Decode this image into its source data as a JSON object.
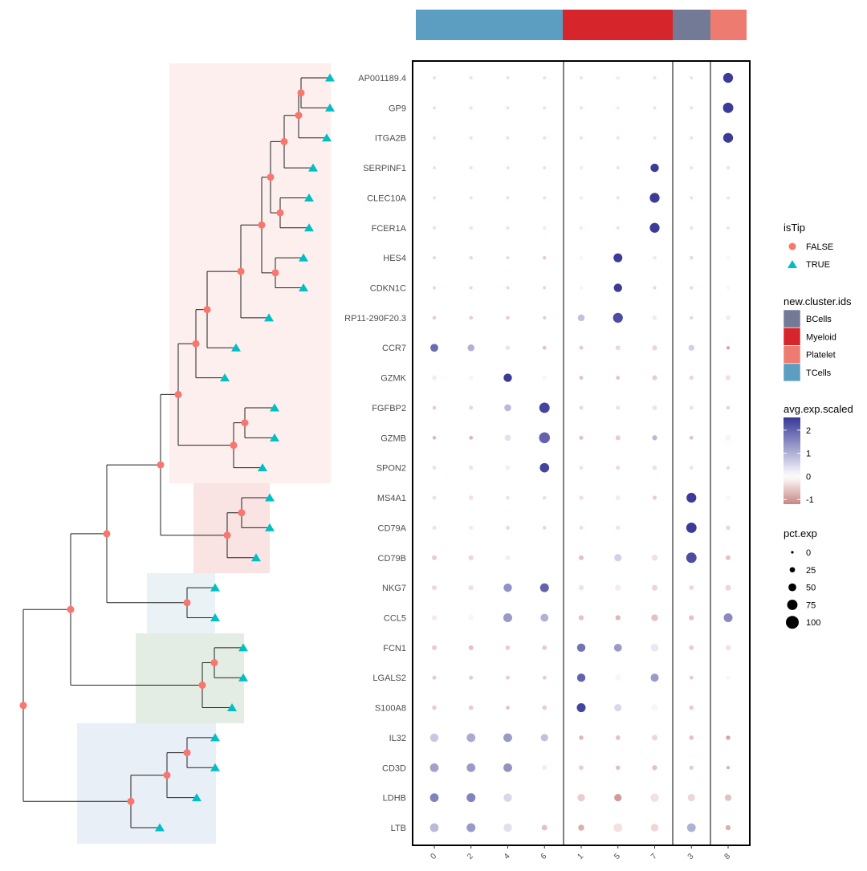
{
  "chart_data": {
    "type": "dotplot",
    "clusters": [
      "0",
      "2",
      "4",
      "6",
      "1",
      "5",
      "7",
      "3",
      "8"
    ],
    "genes": [
      "AP001189.4",
      "GP9",
      "ITGA2B",
      "SERPINF1",
      "CLEC10A",
      "FCER1A",
      "HES4",
      "CDKN1C",
      "RP11-290F20.3",
      "CCR7",
      "GZMK",
      "FGFBP2",
      "GZMB",
      "SPON2",
      "MS4A1",
      "CD79A",
      "CD79B",
      "NKG7",
      "CCL5",
      "FCN1",
      "LGALS2",
      "S100A8",
      "IL32",
      "CD3D",
      "LDHB",
      "LTB"
    ],
    "cluster_groups": [
      {
        "name": "TCells",
        "clusters": [
          "0",
          "2",
          "4",
          "6"
        ],
        "color": "#5b9ec2"
      },
      {
        "name": "Myeloid",
        "clusters": [
          "1",
          "5",
          "7"
        ],
        "color": "#d6262b"
      },
      {
        "name": "BCells",
        "clusters": [
          "3"
        ],
        "color": "#737a96"
      },
      {
        "name": "Platelet",
        "clusters": [
          "8"
        ],
        "color": "#ee7b6f"
      }
    ],
    "pct_exp": [
      [
        4,
        4,
        4,
        4,
        4,
        8,
        4,
        4,
        70
      ],
      [
        4,
        4,
        4,
        4,
        4,
        8,
        4,
        4,
        75
      ],
      [
        5,
        4,
        4,
        4,
        5,
        4,
        4,
        4,
        70
      ],
      [
        4,
        4,
        4,
        4,
        6,
        4,
        55,
        4,
        4
      ],
      [
        5,
        5,
        4,
        4,
        8,
        4,
        70,
        4,
        4
      ],
      [
        8,
        7,
        7,
        8,
        7,
        6,
        70,
        6,
        4
      ],
      [
        5,
        7,
        4,
        7,
        7,
        60,
        10,
        8,
        10
      ],
      [
        5,
        5,
        4,
        6,
        6,
        55,
        5,
        6,
        7
      ],
      [
        8,
        8,
        7,
        5,
        40,
        70,
        18,
        8,
        18
      ],
      [
        50,
        40,
        15,
        10,
        12,
        18,
        22,
        30,
        5
      ],
      [
        18,
        18,
        55,
        16,
        10,
        9,
        20,
        12,
        22
      ],
      [
        8,
        12,
        40,
        75,
        9,
        12,
        18,
        10,
        5
      ],
      [
        8,
        10,
        32,
        80,
        12,
        20,
        22,
        9,
        32
      ],
      [
        12,
        12,
        18,
        65,
        10,
        10,
        18,
        9,
        5
      ],
      [
        12,
        15,
        10,
        12,
        14,
        18,
        12,
        70,
        12
      ],
      [
        12,
        15,
        10,
        9,
        12,
        12,
        0,
        75,
        16
      ],
      [
        20,
        22,
        18,
        20,
        20,
        45,
        32,
        75,
        20
      ],
      [
        18,
        22,
        55,
        60,
        22,
        30,
        30,
        18,
        28
      ],
      [
        22,
        28,
        60,
        50,
        22,
        22,
        40,
        22,
        60
      ],
      [
        20,
        20,
        16,
        18,
        55,
        50,
        50,
        18,
        22
      ],
      [
        12,
        12,
        10,
        10,
        55,
        32,
        52,
        10,
        12
      ],
      [
        16,
        18,
        10,
        16,
        60,
        45,
        38,
        16,
        26
      ],
      [
        55,
        58,
        58,
        45,
        16,
        18,
        28,
        16,
        15
      ],
      [
        58,
        58,
        58,
        18,
        16,
        16,
        22,
        14,
        5
      ],
      [
        58,
        60,
        55,
        45,
        45,
        45,
        55,
        45,
        38
      ],
      [
        58,
        60,
        55,
        28,
        32,
        58,
        48,
        58,
        22
      ]
    ],
    "avg_exp_scaled": [
      [
        -0.3,
        -0.3,
        -0.3,
        -0.3,
        -0.3,
        -0.2,
        -0.3,
        -0.3,
        2.5
      ],
      [
        -0.3,
        -0.3,
        -0.3,
        -0.3,
        -0.3,
        -0.2,
        -0.3,
        -0.3,
        2.5
      ],
      [
        -0.3,
        -0.3,
        -0.3,
        -0.3,
        -0.3,
        -0.3,
        -0.3,
        -0.3,
        2.5
      ],
      [
        -0.3,
        -0.3,
        -0.3,
        -0.3,
        -0.2,
        -0.3,
        2.5,
        -0.3,
        -0.3
      ],
      [
        -0.3,
        -0.3,
        -0.3,
        -0.3,
        0.2,
        -0.3,
        2.5,
        -0.3,
        -0.3
      ],
      [
        -0.3,
        -0.3,
        -0.3,
        -0.2,
        -0.2,
        -0.3,
        2.5,
        -0.3,
        -0.3
      ],
      [
        -0.4,
        -0.4,
        -0.4,
        -0.5,
        0.1,
        2.5,
        -0.2,
        -0.4,
        -0.1
      ],
      [
        -0.4,
        -0.4,
        -0.4,
        -0.4,
        -0.1,
        2.5,
        -0.4,
        -0.4,
        0.1
      ],
      [
        -0.5,
        -0.5,
        -0.5,
        -0.5,
        0.8,
        2.3,
        -0.2,
        -0.4,
        -0.2
      ],
      [
        1.9,
        1.0,
        -0.3,
        -0.6,
        -0.5,
        -0.4,
        -0.4,
        0.6,
        -0.9
      ],
      [
        -0.2,
        0.1,
        2.5,
        0.1,
        -0.6,
        -0.6,
        -0.5,
        -0.4,
        -0.3
      ],
      [
        -0.5,
        -0.4,
        0.9,
        2.4,
        -0.4,
        -0.3,
        -0.3,
        -0.3,
        -0.5
      ],
      [
        -0.7,
        -0.7,
        0.4,
        2.0,
        -0.6,
        -0.5,
        0.9,
        -0.6,
        -0.1
      ],
      [
        -0.3,
        -0.3,
        0.2,
        2.4,
        -0.3,
        -0.4,
        -0.3,
        -0.3,
        -0.4
      ],
      [
        -0.3,
        -0.3,
        -0.3,
        -0.3,
        -0.3,
        -0.2,
        -0.5,
        2.5,
        -0.1
      ],
      [
        -0.3,
        -0.2,
        -0.4,
        -0.4,
        -0.3,
        -0.3,
        0,
        2.5,
        -0.4
      ],
      [
        -0.5,
        -0.4,
        -0.2,
        0.0,
        -0.6,
        0.6,
        -0.3,
        2.3,
        -0.6
      ],
      [
        -0.4,
        -0.3,
        1.4,
        2.0,
        -0.3,
        -0.2,
        -0.4,
        -0.4,
        -0.4
      ],
      [
        -0.2,
        -0.1,
        1.3,
        1.0,
        -0.6,
        -0.7,
        -0.6,
        -0.6,
        1.5
      ],
      [
        -0.5,
        -0.6,
        -0.5,
        -0.5,
        1.8,
        1.3,
        0.3,
        -0.5,
        -0.3
      ],
      [
        -0.5,
        -0.5,
        -0.5,
        -0.5,
        2.0,
        0.1,
        1.3,
        -0.5,
        -0.1
      ],
      [
        -0.5,
        -0.5,
        -0.6,
        -0.5,
        2.4,
        0.5,
        0.1,
        -0.5,
        0.0
      ],
      [
        0.7,
        1.1,
        1.3,
        0.8,
        -0.7,
        -0.6,
        -0.4,
        -0.6,
        -0.9
      ],
      [
        1.2,
        1.3,
        1.4,
        -0.2,
        -0.5,
        -0.6,
        -0.6,
        -0.5,
        -0.8
      ],
      [
        1.6,
        1.6,
        0.5,
        0.0,
        -0.5,
        -1.0,
        -0.3,
        -0.4,
        -0.6
      ],
      [
        0.9,
        1.3,
        0.4,
        -0.6,
        -0.8,
        -0.3,
        -0.4,
        1.0,
        -0.8
      ]
    ],
    "color_scale": {
      "low": "#c68783",
      "mid": "#ffffff",
      "high": "#383896",
      "range": [
        -1.2,
        2.55
      ]
    },
    "legends": {
      "isTip": {
        "title": "isTip",
        "items": [
          {
            "label": "FALSE",
            "shape": "circle",
            "color": "#f8766d"
          },
          {
            "label": "TRUE",
            "shape": "triangle",
            "color": "#00bfc4"
          }
        ]
      },
      "clusters": {
        "title": "new.cluster.ids",
        "items": [
          {
            "label": "BCells",
            "color": "#737a96"
          },
          {
            "label": "Myeloid",
            "color": "#d6262b"
          },
          {
            "label": "Platelet",
            "color": "#ee7b6f"
          },
          {
            "label": "TCells",
            "color": "#5b9ec2"
          }
        ]
      },
      "avg_exp": {
        "title": "avg.exp.scaled",
        "ticks": [
          "2",
          "1",
          "0",
          "-1"
        ]
      },
      "pct_exp": {
        "title": "pct.exp",
        "ticks": [
          "0",
          "25",
          "50",
          "75",
          "100"
        ]
      }
    },
    "tree": {
      "node_color": "#f8766d",
      "tip_color": "#00bfc4",
      "clade_colors": [
        "#fcefed",
        "#f9e3e3",
        "#eaf2f5",
        "#e4ede3",
        "#e9eff6"
      ]
    }
  }
}
